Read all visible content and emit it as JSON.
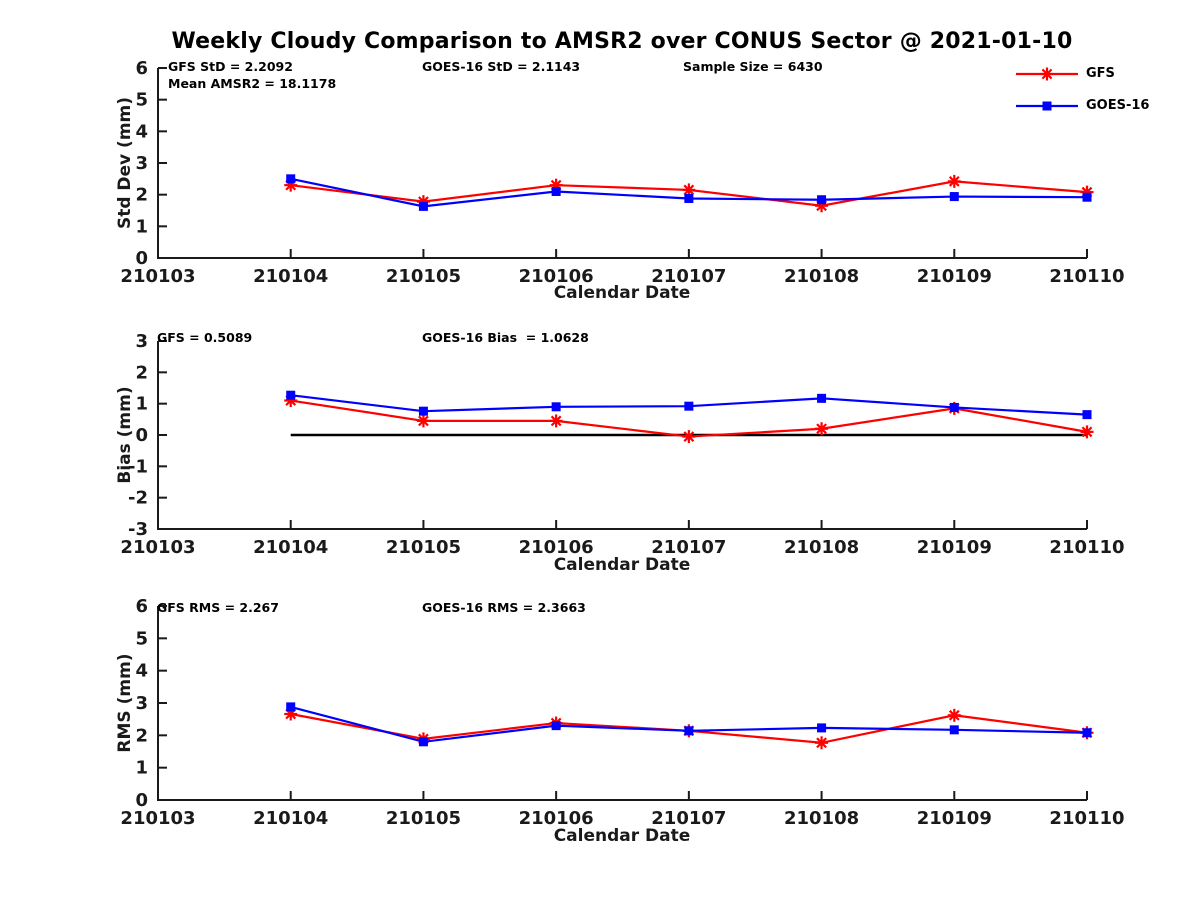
{
  "title": "Weekly Cloudy Comparison to AMSR2 over CONUS Sector @ 2021-01-10",
  "legend": {
    "position": "top-right",
    "items": [
      {
        "label": "GFS",
        "color": "#ff0000",
        "marker": "asterisk"
      },
      {
        "label": "GOES-16",
        "color": "#0000ff",
        "marker": "square"
      }
    ]
  },
  "chart_data": [
    {
      "type": "line",
      "ylabel": "Std Dev (mm)",
      "xlabel": "Calendar Date",
      "ylim": [
        0,
        6
      ],
      "yticks": [
        0,
        1,
        2,
        3,
        4,
        5,
        6
      ],
      "x_tick_labels": [
        "210103",
        "210104",
        "210105",
        "210106",
        "210107",
        "210108",
        "210109",
        "210110"
      ],
      "grid": false,
      "zero_line": false,
      "annotations": [
        "GFS StD = 2.2092",
        "Mean AMSR2 = 18.1178",
        "GOES-16 StD = 2.1143",
        "Sample Size = 6430"
      ],
      "series": [
        {
          "name": "GFS",
          "color": "#ff0000",
          "marker": "asterisk",
          "x": [
            "210104",
            "210105",
            "210106",
            "210107",
            "210108",
            "210109",
            "210110"
          ],
          "values": [
            2.3,
            1.78,
            2.3,
            2.15,
            1.65,
            2.42,
            2.08
          ]
        },
        {
          "name": "GOES-16",
          "color": "#0000ff",
          "marker": "square",
          "x": [
            "210104",
            "210105",
            "210106",
            "210107",
            "210108",
            "210109",
            "210110"
          ],
          "values": [
            2.5,
            1.63,
            2.1,
            1.88,
            1.84,
            1.94,
            1.92
          ]
        }
      ]
    },
    {
      "type": "line",
      "ylabel": "Bias (mm)",
      "xlabel": "Calendar Date",
      "ylim": [
        -3,
        3
      ],
      "yticks": [
        -3,
        -2,
        -1,
        0,
        1,
        2,
        3
      ],
      "x_tick_labels": [
        "210103",
        "210104",
        "210105",
        "210106",
        "210107",
        "210108",
        "210109",
        "210110"
      ],
      "grid": false,
      "zero_line": true,
      "annotations": [
        "GFS = 0.5089",
        "GOES-16 Bias  = 1.0628"
      ],
      "series": [
        {
          "name": "GFS",
          "color": "#ff0000",
          "marker": "asterisk",
          "x": [
            "210104",
            "210105",
            "210106",
            "210107",
            "210108",
            "210109",
            "210110"
          ],
          "values": [
            1.1,
            0.45,
            0.45,
            -0.05,
            0.2,
            0.85,
            0.1
          ]
        },
        {
          "name": "GOES-16",
          "color": "#0000ff",
          "marker": "square",
          "x": [
            "210104",
            "210105",
            "210106",
            "210107",
            "210108",
            "210109",
            "210110"
          ],
          "values": [
            1.27,
            0.76,
            0.9,
            0.92,
            1.17,
            0.88,
            0.65
          ]
        }
      ]
    },
    {
      "type": "line",
      "ylabel": "RMS (mm)",
      "xlabel": "Calendar Date",
      "ylim": [
        0,
        6
      ],
      "yticks": [
        0,
        1,
        2,
        3,
        4,
        5,
        6
      ],
      "x_tick_labels": [
        "210103",
        "210104",
        "210105",
        "210106",
        "210107",
        "210108",
        "210109",
        "210110"
      ],
      "grid": false,
      "zero_line": false,
      "annotations": [
        "GFS RMS = 2.267",
        "GOES-16 RMS = 2.3663"
      ],
      "series": [
        {
          "name": "GFS",
          "color": "#ff0000",
          "marker": "asterisk",
          "x": [
            "210104",
            "210105",
            "210106",
            "210107",
            "210108",
            "210109",
            "210110"
          ],
          "values": [
            2.66,
            1.89,
            2.38,
            2.14,
            1.77,
            2.62,
            2.08
          ]
        },
        {
          "name": "GOES-16",
          "color": "#0000ff",
          "marker": "square",
          "x": [
            "210104",
            "210105",
            "210106",
            "210107",
            "210108",
            "210109",
            "210110"
          ],
          "values": [
            2.88,
            1.8,
            2.3,
            2.14,
            2.23,
            2.17,
            2.08
          ]
        }
      ]
    }
  ]
}
